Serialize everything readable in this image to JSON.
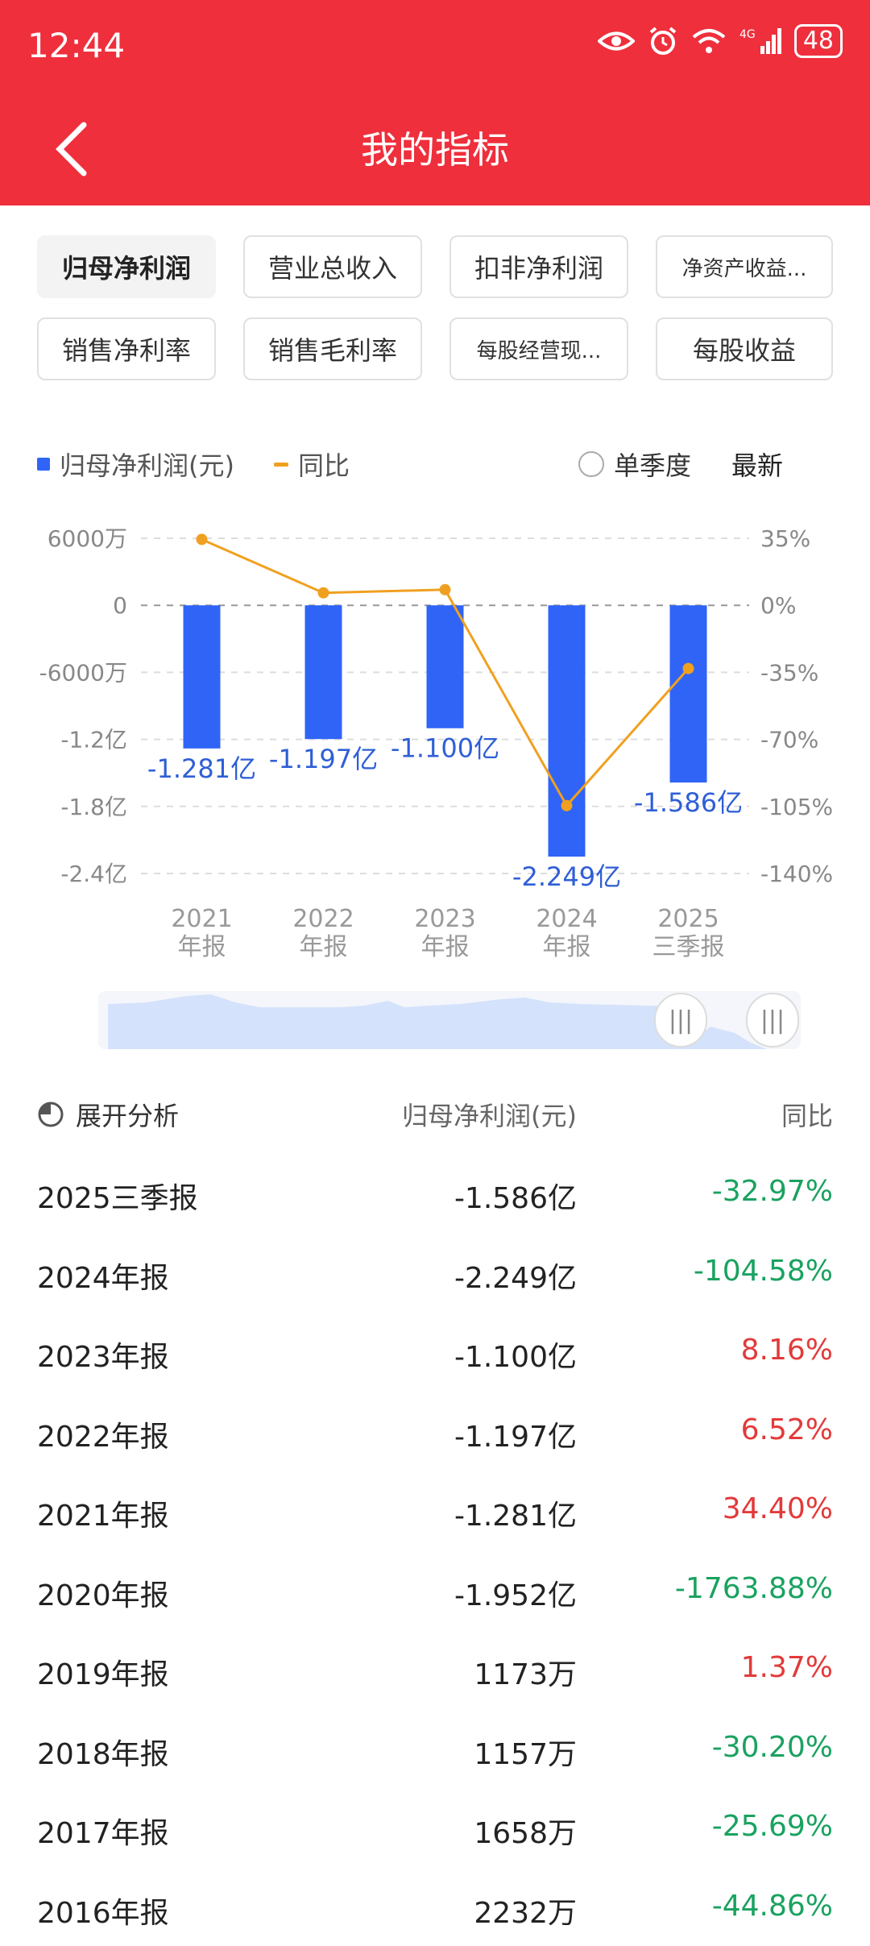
{
  "status": {
    "time": "12:44",
    "battery": "48",
    "network": "4G"
  },
  "header": {
    "title": "我的指标"
  },
  "chips": [
    {
      "label": "归母净利润",
      "active": true
    },
    {
      "label": "营业总收入",
      "active": false
    },
    {
      "label": "扣非净利润",
      "active": false
    },
    {
      "label": "净资产收益...",
      "active": false
    },
    {
      "label": "销售净利率",
      "active": false
    },
    {
      "label": "销售毛利率",
      "active": false
    },
    {
      "label": "每股经营现...",
      "active": false
    },
    {
      "label": "每股收益",
      "active": false
    }
  ],
  "legend": {
    "bar_label": "归母净利润(元)",
    "line_label": "同比",
    "quarterly_label": "单季度",
    "latest_label": "最新"
  },
  "colors": {
    "accent": "#ef2f3c",
    "bar": "#2f64f6",
    "line": "#f0a020",
    "neg": "#1aa260",
    "pos": "#e23a3a"
  },
  "chart_data": {
    "type": "bar",
    "categories": [
      [
        "2021",
        "年报"
      ],
      [
        "2022",
        "年报"
      ],
      [
        "2023",
        "年报"
      ],
      [
        "2024",
        "年报"
      ],
      [
        "2025",
        "三季报"
      ]
    ],
    "series": [
      {
        "name": "归母净利润(元)",
        "type": "bar",
        "unit": "亿",
        "values": [
          -1.281,
          -1.197,
          -1.1,
          -2.249,
          -1.586
        ],
        "labels": [
          "-1.281亿",
          "-1.197亿",
          "-1.100亿",
          "-2.249亿",
          "-1.586亿"
        ]
      },
      {
        "name": "同比",
        "type": "line",
        "unit": "%",
        "values": [
          34.4,
          6.52,
          8.16,
          -104.58,
          -32.97
        ]
      }
    ],
    "y_left": {
      "ticks": [
        0.6,
        0,
        -0.6,
        -1.2,
        -1.8,
        -2.4
      ],
      "tick_labels": [
        "6000万",
        "0",
        "-6000万",
        "-1.2亿",
        "-1.8亿",
        "-2.4亿"
      ],
      "ylim": [
        -2.4,
        0.6
      ]
    },
    "y_right": {
      "ticks": [
        35,
        0,
        -35,
        -70,
        -105,
        -140
      ],
      "tick_labels": [
        "35%",
        "0%",
        "-35%",
        "-70%",
        "-105%",
        "-140%"
      ],
      "ylim": [
        -140,
        35
      ]
    },
    "grid": true,
    "legend_position": "top-left"
  },
  "table": {
    "expand_label": "展开分析",
    "col_value": "归母净利润(元)",
    "col_yoy": "同比",
    "rows": [
      {
        "period": "2025三季报",
        "value": "-1.586亿",
        "yoy": "-32.97%",
        "trend": "neg"
      },
      {
        "period": "2024年报",
        "value": "-2.249亿",
        "yoy": "-104.58%",
        "trend": "neg"
      },
      {
        "period": "2023年报",
        "value": "-1.100亿",
        "yoy": "8.16%",
        "trend": "pos"
      },
      {
        "period": "2022年报",
        "value": "-1.197亿",
        "yoy": "6.52%",
        "trend": "pos"
      },
      {
        "period": "2021年报",
        "value": "-1.281亿",
        "yoy": "34.40%",
        "trend": "pos"
      },
      {
        "period": "2020年报",
        "value": "-1.952亿",
        "yoy": "-1763.88%",
        "trend": "neg"
      },
      {
        "period": "2019年报",
        "value": "1173万",
        "yoy": "1.37%",
        "trend": "pos"
      },
      {
        "period": "2018年报",
        "value": "1157万",
        "yoy": "-30.20%",
        "trend": "neg"
      },
      {
        "period": "2017年报",
        "value": "1658万",
        "yoy": "-25.69%",
        "trend": "neg"
      },
      {
        "period": "2016年报",
        "value": "2232万",
        "yoy": "-44.86%",
        "trend": "neg"
      }
    ]
  }
}
